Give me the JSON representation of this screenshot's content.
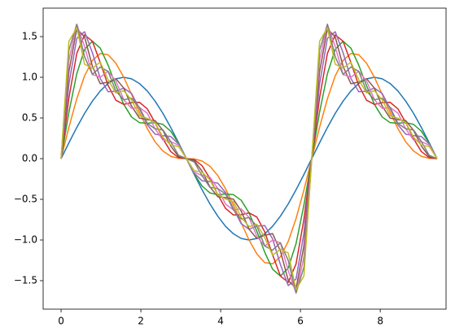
{
  "chart_data": {
    "type": "line",
    "x": [
      0,
      0.196,
      0.393,
      0.589,
      0.785,
      0.982,
      1.178,
      1.374,
      1.571,
      1.767,
      1.963,
      2.16,
      2.356,
      2.553,
      2.749,
      2.945,
      3.142,
      3.338,
      3.534,
      3.731,
      3.927,
      4.123,
      4.32,
      4.516,
      4.712,
      4.909,
      5.105,
      5.301,
      5.498,
      5.694,
      5.89,
      6.087,
      6.283,
      6.48,
      6.676,
      6.872,
      7.069,
      7.265,
      7.461,
      7.658,
      7.854,
      8.05,
      8.247,
      8.443,
      8.639,
      8.836,
      9.032,
      9.228,
      9.425
    ],
    "series": [
      {
        "color": "#1f77b4",
        "values": [
          0,
          0.195,
          0.383,
          0.556,
          0.707,
          0.832,
          0.924,
          0.981,
          1,
          0.981,
          0.924,
          0.832,
          0.707,
          0.556,
          0.383,
          0.195,
          0,
          -0.195,
          -0.383,
          -0.556,
          -0.707,
          -0.832,
          -0.924,
          -0.981,
          -1,
          -0.981,
          -0.924,
          -0.832,
          -0.707,
          -0.556,
          -0.383,
          -0.195,
          0,
          0.195,
          0.383,
          0.556,
          0.707,
          0.832,
          0.924,
          0.981,
          1,
          0.981,
          0.924,
          0.832,
          0.707,
          0.556,
          0.383,
          0.195,
          0
        ]
      },
      {
        "color": "#ff7f0e",
        "values": [
          0,
          0.386,
          0.736,
          1.017,
          1.207,
          1.293,
          1.277,
          1.172,
          1,
          0.79,
          0.57,
          0.37,
          0.207,
          0.094,
          0.029,
          0.004,
          0,
          -0.004,
          -0.029,
          -0.094,
          -0.207,
          -0.37,
          -0.57,
          -0.79,
          -1,
          -1.172,
          -1.277,
          -1.293,
          -1.207,
          -1.017,
          -0.736,
          -0.386,
          0,
          0.386,
          0.736,
          1.017,
          1.207,
          1.293,
          1.277,
          1.172,
          1,
          0.79,
          0.57,
          0.37,
          0.207,
          0.094,
          0.029,
          0.004,
          0
        ]
      },
      {
        "color": "#2ca02c",
        "values": [
          0,
          0.572,
          1.044,
          1.344,
          1.443,
          1.358,
          1.15,
          0.895,
          0.667,
          0.512,
          0.443,
          0.435,
          0.443,
          0.421,
          0.337,
          0.189,
          0,
          -0.189,
          -0.337,
          -0.421,
          -0.443,
          -0.435,
          -0.443,
          -0.512,
          -0.667,
          -0.895,
          -1.15,
          -1.358,
          -1.443,
          -1.344,
          -1.044,
          -0.572,
          0,
          0.572,
          1.044,
          1.344,
          1.443,
          1.358,
          1.15,
          0.895,
          0.667,
          0.512,
          0.443,
          0.435,
          0.443,
          0.421,
          0.337,
          0.189,
          0
        ]
      },
      {
        "color": "#d62728",
        "values": [
          0,
          0.748,
          1.294,
          1.521,
          1.443,
          1.181,
          0.9,
          0.718,
          0.667,
          0.689,
          0.693,
          0.612,
          0.443,
          0.244,
          0.087,
          0.012,
          0,
          -0.012,
          -0.087,
          -0.244,
          -0.443,
          -0.612,
          -0.693,
          -0.689,
          -0.667,
          -0.718,
          -0.9,
          -1.181,
          -1.443,
          -1.521,
          -1.294,
          -0.748,
          0,
          0.748,
          1.294,
          1.521,
          1.443,
          1.181,
          0.9,
          0.718,
          0.667,
          0.689,
          0.693,
          0.612,
          0.443,
          0.244,
          0.087,
          0.012,
          0
        ]
      },
      {
        "color": "#9467bd",
        "values": [
          0,
          0.915,
          1.479,
          1.56,
          1.301,
          0.985,
          0.823,
          0.829,
          0.867,
          0.8,
          0.616,
          0.416,
          0.301,
          0.283,
          0.272,
          0.179,
          0,
          -0.179,
          -0.272,
          -0.283,
          -0.301,
          -0.416,
          -0.616,
          -0.8,
          -0.867,
          -0.829,
          -0.823,
          -0.985,
          -1.301,
          -1.56,
          -1.479,
          -0.915,
          0,
          0.915,
          1.479,
          1.56,
          1.301,
          0.985,
          0.823,
          0.829,
          0.867,
          0.8,
          0.616,
          0.416,
          0.301,
          0.283,
          0.272,
          0.179,
          0
        ]
      },
      {
        "color": "#8c564b",
        "values": [
          0,
          1.069,
          1.597,
          1.496,
          1.135,
          0.921,
          0.941,
          0.983,
          0.867,
          0.646,
          0.498,
          0.479,
          0.468,
          0.347,
          0.154,
          0.025,
          0,
          -0.025,
          -0.154,
          -0.347,
          -0.468,
          -0.479,
          -0.498,
          -0.646,
          -0.867,
          -0.983,
          -0.941,
          -0.921,
          -1.135,
          -1.496,
          -1.597,
          -1.069,
          0,
          1.069,
          1.597,
          1.496,
          1.135,
          0.921,
          0.941,
          0.983,
          0.867,
          0.646,
          0.498,
          0.479,
          0.468,
          0.347,
          0.154,
          0.025,
          0
        ]
      },
      {
        "color": "#e377c2",
        "values": [
          0,
          1.209,
          1.651,
          1.377,
          1.034,
          1.001,
          1.073,
          0.955,
          0.724,
          0.618,
          0.63,
          0.559,
          0.367,
          0.228,
          0.209,
          0.165,
          0,
          -0.165,
          -0.209,
          -0.228,
          -0.367,
          -0.559,
          -0.63,
          -0.618,
          -0.724,
          -0.955,
          -1.073,
          -1.001,
          -1.034,
          -1.377,
          -1.651,
          -1.209,
          0,
          1.209,
          1.651,
          1.377,
          1.034,
          1.001,
          1.073,
          0.955,
          0.724,
          0.618,
          0.63,
          0.559,
          0.367,
          0.228,
          0.209,
          0.165,
          0
        ]
      },
      {
        "color": "#7f7f7f",
        "values": [
          0,
          1.334,
          1.651,
          1.252,
          1.034,
          1.126,
          1.073,
          0.83,
          0.724,
          0.743,
          0.63,
          0.434,
          0.367,
          0.353,
          0.209,
          0.04,
          0,
          -0.04,
          -0.209,
          -0.353,
          -0.367,
          -0.434,
          -0.63,
          -0.743,
          -0.724,
          -0.83,
          -1.073,
          -1.126,
          -1.034,
          -1.252,
          -1.651,
          -1.334,
          0,
          1.334,
          1.651,
          1.252,
          1.034,
          1.126,
          1.073,
          0.83,
          0.724,
          0.743,
          0.63,
          0.434,
          0.367,
          0.353,
          0.209,
          0.04,
          0
        ]
      },
      {
        "color": "#bcbd22",
        "values": [
          0,
          1.443,
          1.609,
          1.16,
          1.112,
          1.187,
          0.97,
          0.808,
          0.835,
          0.722,
          0.527,
          0.496,
          0.446,
          0.261,
          0.167,
          0.149,
          0,
          -0.149,
          -0.167,
          -0.261,
          -0.446,
          -0.496,
          -0.527,
          -0.722,
          -0.835,
          -0.808,
          -0.97,
          -1.187,
          -1.112,
          -1.16,
          -1.609,
          -1.443,
          0,
          1.443,
          1.609,
          1.16,
          1.112,
          1.187,
          0.97,
          0.808,
          0.835,
          0.722,
          0.527,
          0.496,
          0.446,
          0.261,
          0.167,
          0.149,
          0
        ]
      }
    ],
    "xlim": [
      -0.45,
      9.65
    ],
    "xticks": [
      0,
      2,
      4,
      6,
      8
    ],
    "ylim": [
      -1.85,
      1.85
    ],
    "yticks": [
      {
        "value": -1.5,
        "label": "−1.5"
      },
      {
        "value": -1,
        "label": "−1.0"
      },
      {
        "value": -0.5,
        "label": "−0.5"
      },
      {
        "value": 0,
        "label": "0.0"
      },
      0.5,
      {
        "value": 1,
        "label": "1.0"
      },
      1.5
    ],
    "grid": false
  }
}
